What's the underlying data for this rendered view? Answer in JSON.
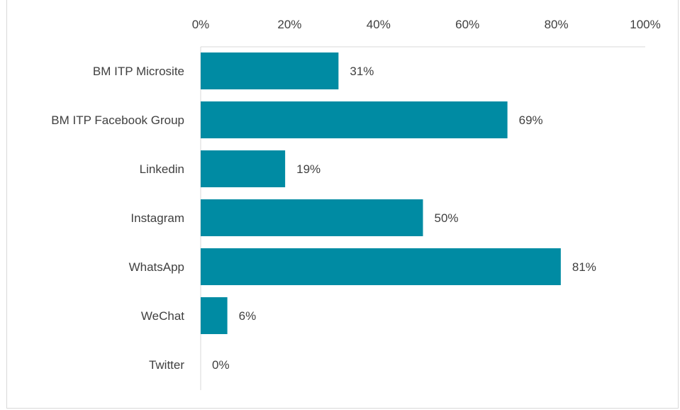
{
  "chart_data": {
    "type": "bar",
    "orientation": "horizontal",
    "title": "",
    "xlabel": "",
    "ylabel": "",
    "categories": [
      "BM ITP Microsite",
      "BM ITP Facebook Group",
      "Linkedin",
      "Instagram",
      "WhatsApp",
      "WeChat",
      "Twitter"
    ],
    "values": [
      31,
      69,
      19,
      50,
      81,
      6,
      0
    ],
    "value_labels": [
      "31%",
      "69%",
      "19%",
      "50%",
      "81%",
      "6%",
      "0%"
    ],
    "xlim": [
      0,
      100
    ],
    "x_ticks": [
      0,
      20,
      40,
      60,
      80,
      100
    ],
    "x_tick_labels": [
      "0%",
      "20%",
      "40%",
      "60%",
      "80%",
      "100%"
    ],
    "x_axis_position": "top",
    "grid": false,
    "legend": "none",
    "bar_color": "#008ba3",
    "text_color": "#404040",
    "axis_color": "#d9d9d9"
  }
}
